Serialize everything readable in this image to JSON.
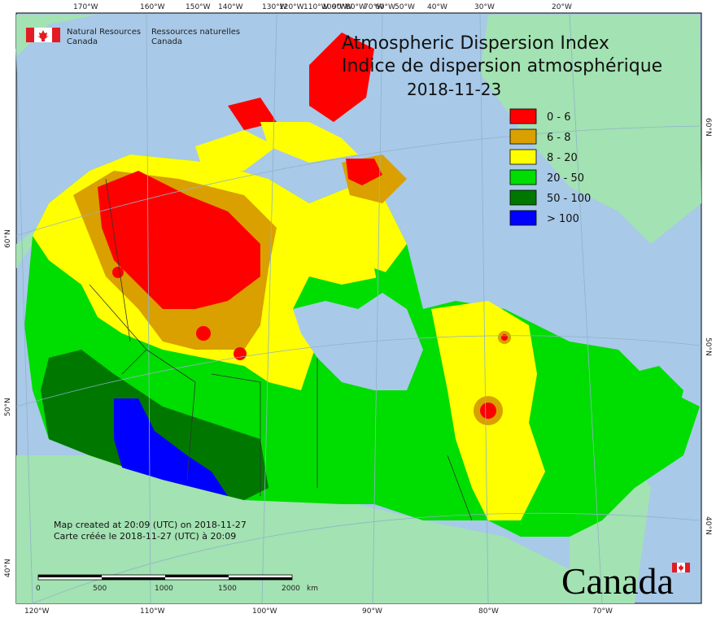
{
  "title": {
    "line1": "Atmospheric Dispersion Index",
    "line2": "Indice de dispersion atmosphérique",
    "date": "2018-11-23"
  },
  "agency": {
    "en": "Natural Resources\nCanada",
    "en1": "Natural Resources",
    "en2": "Canada",
    "fr1": "Ressources naturelles",
    "fr2": "Canada",
    "flag_icon": "canada-flag-icon"
  },
  "legend": [
    {
      "label": "0 - 6",
      "color": "#ff0000"
    },
    {
      "label": "6 - 8",
      "color": "#d9a000"
    },
    {
      "label": "8 - 20",
      "color": "#ffff00"
    },
    {
      "label": "20 - 50",
      "color": "#00dd00"
    },
    {
      "label": "50 - 100",
      "color": "#007800"
    },
    {
      "label": "> 100",
      "color": "#0000ff"
    }
  ],
  "top_longitudes": [
    "170°W",
    "160°W",
    "150°W",
    "140°W",
    "130°W",
    "120°W",
    "110°W",
    "100°W",
    "90°W",
    "80°W",
    "70°W",
    "60°W",
    "50°W",
    "40°W",
    "30°W",
    "20°W"
  ],
  "bottom_longitudes": [
    "120°W",
    "110°W",
    "100°W",
    "90°W",
    "80°W",
    "70°W"
  ],
  "left_latitudes": [
    "60°N",
    "50°N",
    "40°N"
  ],
  "right_latitudes": [
    "60°N",
    "50°N",
    "40°N"
  ],
  "credit": {
    "en": "Map created at 20:09 (UTC) on 2018-11-27",
    "fr": "Carte créée le 2018-11-27 (UTC) à 20:09"
  },
  "scale": {
    "ticks": [
      "0",
      "500",
      "1000",
      "1500",
      "2000"
    ],
    "unit": "km"
  },
  "wordmark": "Canada",
  "colors": {
    "ocean": "#a8c9e8",
    "land_outside": "#a3e2b2",
    "greenland": "#a3e2b2"
  }
}
